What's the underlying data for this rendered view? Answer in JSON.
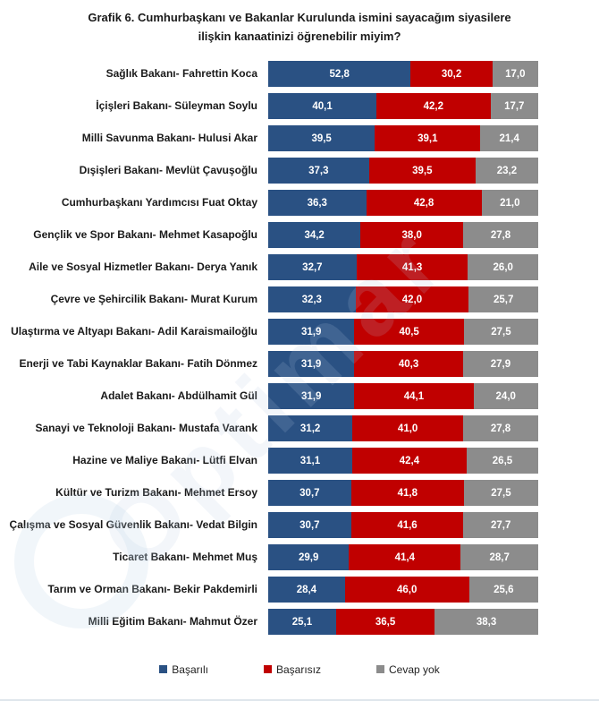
{
  "title": {
    "line1": "Grafik 6. Cumhurbaşkanı ve Bakanlar Kurulunda ismini sayacağım siyasilere",
    "line2": "ilişkin kanaatinizi öğrenebilir miyim?"
  },
  "watermark": {
    "text": "Optimar"
  },
  "colors": {
    "basarili_blue": "#2A5183",
    "basarisiz_red": "#C00000",
    "cevap_yok_gray": "#8C8C8C",
    "label_text": "#1A1A1A",
    "value_text": "#FFFFFF"
  },
  "chart_data": {
    "type": "bar",
    "orientation": "horizontal",
    "stacked": true,
    "unit": "percent",
    "xlim": [
      0,
      100
    ],
    "grid": false,
    "legend_position": "bottom",
    "value_label_format": "comma-decimal, 1 digit",
    "title": "Grafik 6. Cumhurbaşkanı ve Bakanlar Kurulunda ismini sayacağım siyasilere ilişkin kanaatinizi öğrenebilir miyim?",
    "categories": [
      "Sağlık Bakanı- Fahrettin Koca",
      "İçişleri Bakanı- Süleyman Soylu",
      "Milli Savunma Bakanı- Hulusi Akar",
      "Dışişleri Bakanı- Mevlüt Çavuşoğlu",
      "Cumhurbaşkanı Yardımcısı Fuat Oktay",
      "Gençlik ve Spor Bakanı- Mehmet Kasapoğlu",
      "Aile ve Sosyal Hizmetler Bakanı- Derya Yanık",
      "Çevre ve Şehircilik Bakanı- Murat Kurum",
      "Ulaştırma ve Altyapı Bakanı- Adil Karaismailoğlu",
      "Enerji ve Tabi Kaynaklar Bakanı- Fatih Dönmez",
      "Adalet Bakanı- Abdülhamit Gül",
      "Sanayi ve Teknoloji Bakanı- Mustafa Varank",
      "Hazine ve Maliye Bakanı- Lütfi Elvan",
      "Kültür ve Turizm Bakanı- Mehmet Ersoy",
      "Çalışma ve Sosyal Güvenlik Bakanı- Vedat Bilgin",
      "Ticaret Bakanı- Mehmet Muş",
      "Tarım ve Orman Bakanı- Bekir Pakdemirli",
      "Milli Eğitim Bakanı- Mahmut Özer"
    ],
    "series": [
      {
        "name": "Başarılı",
        "color": "#2A5183",
        "values": [
          52.8,
          40.1,
          39.5,
          37.3,
          36.3,
          34.2,
          32.7,
          32.3,
          31.9,
          31.9,
          31.9,
          31.2,
          31.1,
          30.7,
          30.7,
          29.9,
          28.4,
          25.1
        ]
      },
      {
        "name": "Başarısız",
        "color": "#C00000",
        "values": [
          30.2,
          42.2,
          39.1,
          39.5,
          42.8,
          38.0,
          41.3,
          42.0,
          40.5,
          40.3,
          44.1,
          41.0,
          42.4,
          41.8,
          41.6,
          41.4,
          46.0,
          36.5
        ]
      },
      {
        "name": "Cevap yok",
        "color": "#8C8C8C",
        "values": [
          17.0,
          17.7,
          21.4,
          23.2,
          21.0,
          27.8,
          26.0,
          25.7,
          27.5,
          27.9,
          24.0,
          27.8,
          26.5,
          27.5,
          27.7,
          28.7,
          25.6,
          38.3
        ]
      }
    ]
  }
}
